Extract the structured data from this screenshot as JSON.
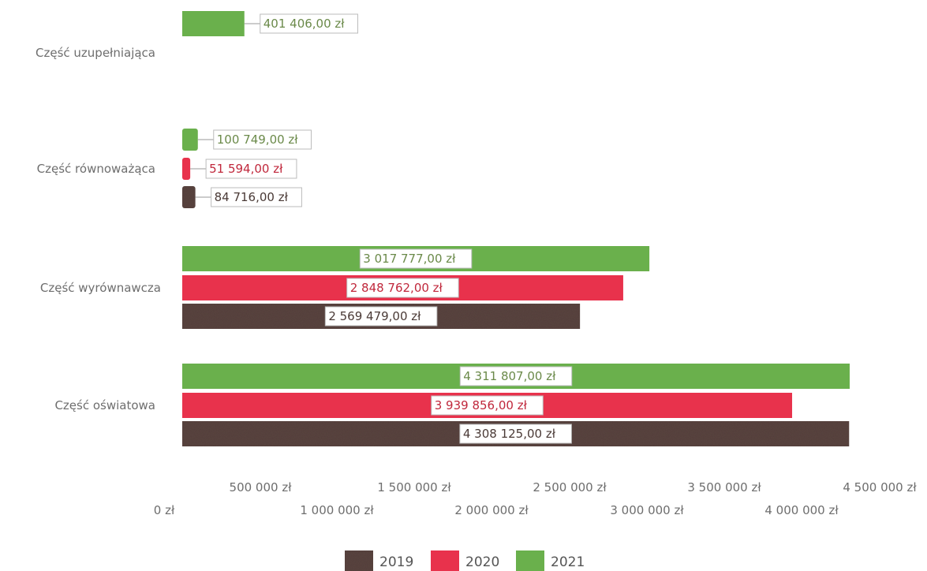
{
  "chart_data": {
    "type": "bar",
    "orientation": "horizontal",
    "categories": [
      "Część uzupełniająca",
      "Część równoważąca",
      "Część wyrównawcza",
      "Część oświatowa"
    ],
    "series": [
      {
        "name": "2021",
        "color": "#6ab04c",
        "values": [
          401406,
          100749,
          3017777,
          4311807
        ],
        "labels": [
          "401 406,00 zł",
          "100 749,00 zł",
          "3 017 777,00 zł",
          "4 311 807,00 zł"
        ]
      },
      {
        "name": "2020",
        "color": "#e8324c",
        "values": [
          null,
          51594,
          2848762,
          3939856
        ],
        "labels": [
          null,
          "51 594,00 zł",
          "2 848 762,00 zł",
          "3 939 856,00 zł"
        ]
      },
      {
        "name": "2019",
        "color": "#5a4440",
        "values": [
          null,
          84716,
          2569479,
          4308125
        ],
        "labels": [
          null,
          "84 716,00 zł",
          "2 569 479,00 zł",
          "4 308 125,00 zł"
        ]
      }
    ],
    "x_ticks": [
      {
        "value": 0,
        "label": "0 zł"
      },
      {
        "value": 500000,
        "label": "500 000 zł"
      },
      {
        "value": 1000000,
        "label": "1 000 000 zł"
      },
      {
        "value": 1500000,
        "label": "1 500 000 zł"
      },
      {
        "value": 2000000,
        "label": "2 000 000 zł"
      },
      {
        "value": 2500000,
        "label": "2 500 000 zł"
      },
      {
        "value": 3000000,
        "label": "3 000 000 zł"
      },
      {
        "value": 3500000,
        "label": "3 500 000 zł"
      },
      {
        "value": 4000000,
        "label": "4 000 000 zł"
      },
      {
        "value": 4500000,
        "label": "4 500 000 zł"
      }
    ],
    "xlim": [
      0,
      4500000
    ],
    "grid": false,
    "legend_position": "bottom",
    "legend": [
      "2019",
      "2020",
      "2021"
    ],
    "title": "",
    "xlabel": "",
    "ylabel": ""
  }
}
